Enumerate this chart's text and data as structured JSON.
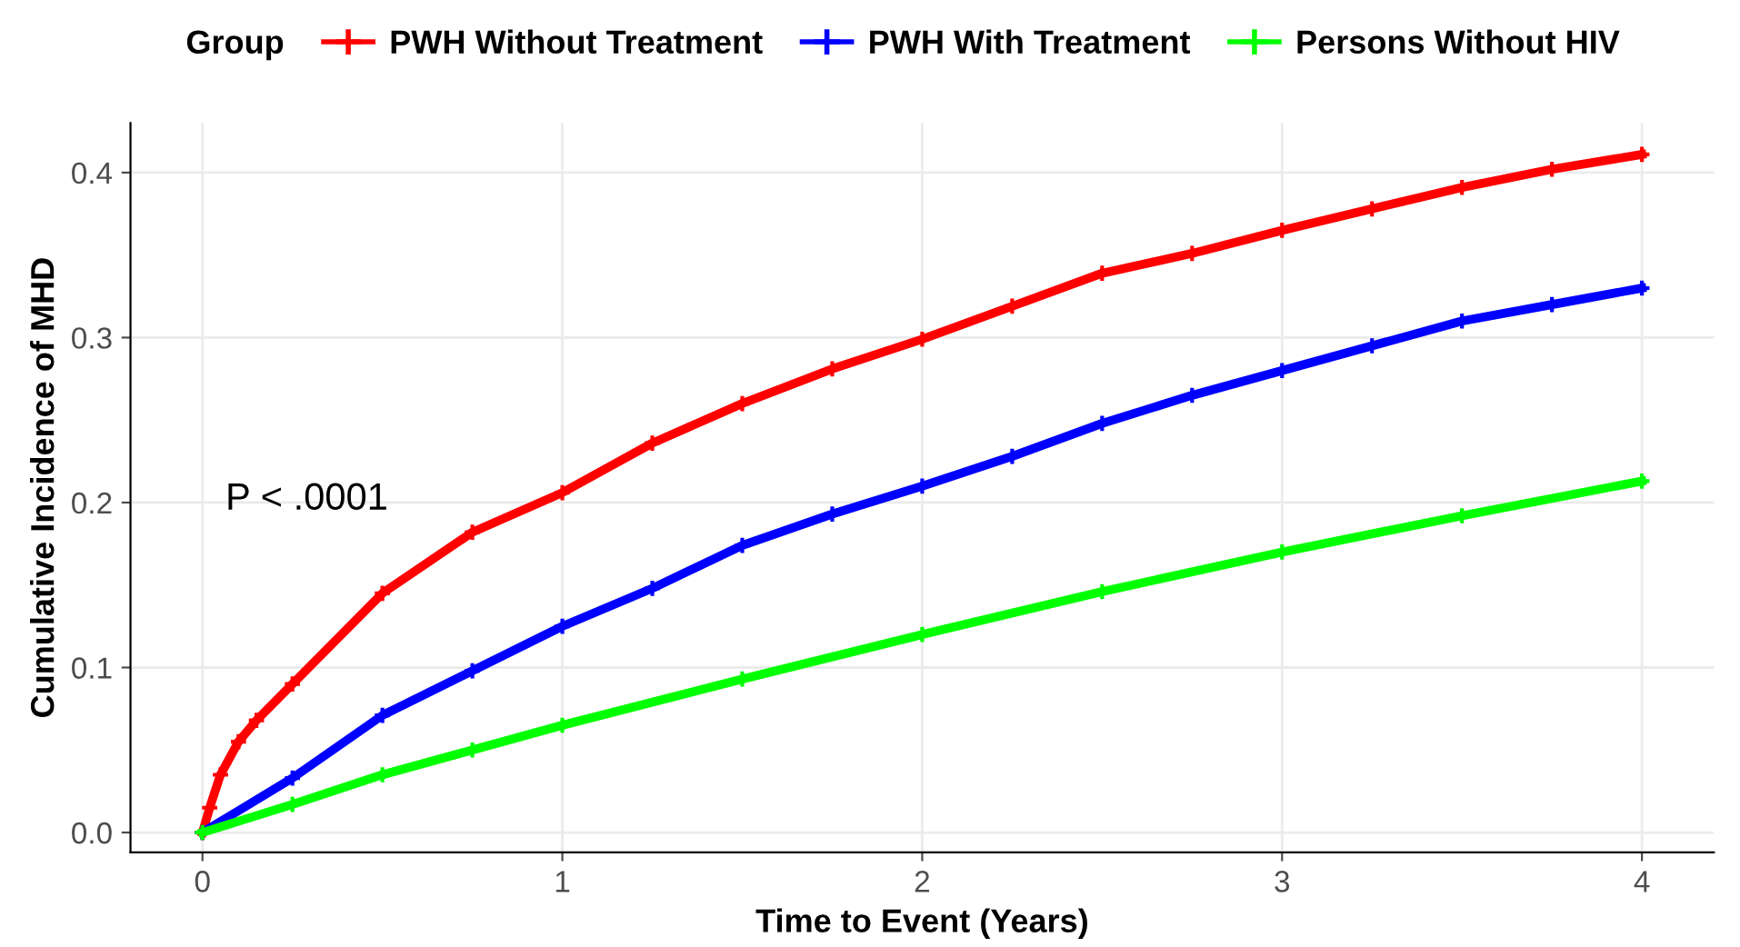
{
  "chart_data": {
    "type": "line",
    "xlabel": "Time to Event (Years)",
    "ylabel": "Cumulative Incidence of MHD",
    "legend_title": "Group",
    "annotations": [
      "P < .0001"
    ],
    "xlim": [
      -0.2,
      4.2
    ],
    "ylim": [
      -0.012,
      0.43
    ],
    "xticks": [
      0,
      1,
      2,
      3,
      4
    ],
    "yticks": [
      {
        "value": 0,
        "label": "0.0"
      },
      0.1,
      0.2,
      0.3,
      0.4
    ],
    "grid": true,
    "legend": "top",
    "marker": "cross",
    "line_style": "solid",
    "series": [
      {
        "name": "PWH Without Treatment",
        "color": "#ff0000",
        "x": [
          0,
          0.02,
          0.05,
          0.1,
          0.15,
          0.25,
          0.5,
          0.75,
          1,
          1.25,
          1.5,
          1.75,
          2,
          2.25,
          2.5,
          2.75,
          3,
          3.25,
          3.5,
          3.75,
          4
        ],
        "values": [
          0,
          0.015,
          0.035,
          0.055,
          0.068,
          0.09,
          0.145,
          0.182,
          0.206,
          0.236,
          0.26,
          0.281,
          0.299,
          0.319,
          0.339,
          0.351,
          0.365,
          0.378,
          0.391,
          0.402,
          0.411
        ]
      },
      {
        "name": "PWH With Treatment",
        "color": "#0000ff",
        "x": [
          0,
          0.25,
          0.5,
          0.75,
          1,
          1.25,
          1.5,
          1.75,
          2,
          2.25,
          2.5,
          2.75,
          3,
          3.25,
          3.5,
          3.75,
          4
        ],
        "values": [
          0,
          0.033,
          0.071,
          0.098,
          0.125,
          0.148,
          0.174,
          0.193,
          0.21,
          0.228,
          0.248,
          0.265,
          0.28,
          0.295,
          0.31,
          0.32,
          0.33
        ]
      },
      {
        "name": "Persons Without HIV",
        "color": "#00ff00",
        "x": [
          0,
          0.25,
          0.5,
          0.75,
          1,
          1.5,
          2,
          2.5,
          3,
          3.5,
          4
        ],
        "values": [
          0,
          0.017,
          0.035,
          0.05,
          0.065,
          0.093,
          0.12,
          0.146,
          0.17,
          0.192,
          0.213
        ]
      }
    ]
  }
}
